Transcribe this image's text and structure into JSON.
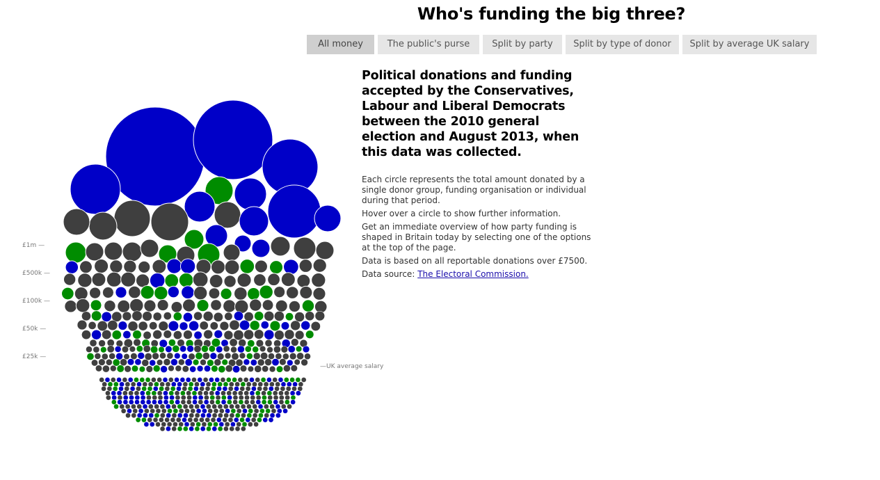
{
  "title": "Who's funding the big three?",
  "tabs": [
    {
      "label": "All money",
      "active": true
    },
    {
      "label": "The public's purse",
      "active": false
    },
    {
      "label": "Split by party",
      "active": false
    },
    {
      "label": "Split by type of donor",
      "active": false
    },
    {
      "label": "Split by average UK salary",
      "active": false
    }
  ],
  "description": {
    "heading": "Political donations and funding accepted by the Conservatives, Labour and Liberal Democrats between the 2010 general election and August 2013, when this data was collected.",
    "paragraphs": [
      "Each circle represents the total amount donated by a single donor group, funding organisation or individual during that period.",
      "Hover over a circle to show further information.",
      "Get an immediate overview of how party funding is shaped in Britain today by selecting one of the options at the top of the page.",
      "Data is based on all reportable donations over £7500."
    ],
    "source_prefix": "Data source: ",
    "source_link": "The Electoral Commission."
  },
  "scale_labels": [
    "£1m —",
    "£500k —",
    "£100k —",
    "£50k —",
    "£25k —"
  ],
  "salary_marker": "—UK average salary",
  "colors": {
    "conservatives": "#0000c8",
    "labour": "#3f3f3f",
    "libdem": "#008c00"
  }
}
